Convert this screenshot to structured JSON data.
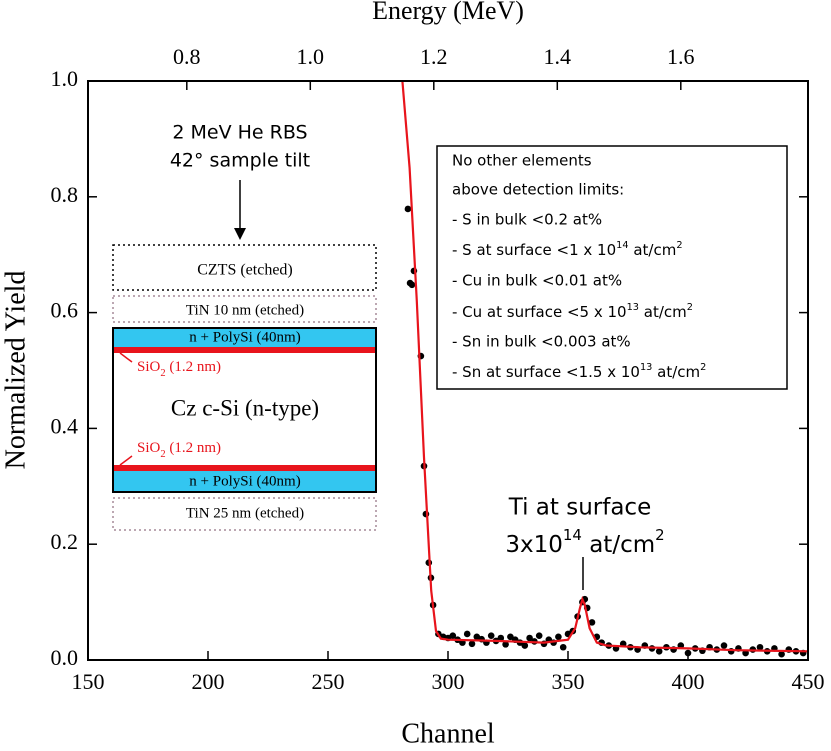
{
  "chart_data": {
    "type": "scatter",
    "x_label": "Channel",
    "y_label": "Normalized Yield",
    "x2_label": "Energy (MeV)",
    "xlim": [
      150,
      450
    ],
    "xticks": [
      150,
      200,
      250,
      300,
      350,
      400,
      450
    ],
    "ylim": [
      0,
      1
    ],
    "yticks": [
      {
        "value": 0,
        "label": "0.0"
      },
      0.2,
      0.4,
      0.6,
      0.8,
      {
        "value": 1,
        "label": "1.0"
      }
    ],
    "x2lim": [
      0.64,
      1.806
    ],
    "x2ticks": [
      0.8,
      {
        "value": 1,
        "label": "1.0"
      },
      1.2,
      1.4,
      1.6
    ],
    "series": [
      {
        "type": "scatter",
        "color": "#000000",
        "x": [
          283.3,
          284.2,
          285.8,
          285.0,
          288.7,
          290.0,
          290.8,
          292.0,
          292.9,
          293.8,
          296,
          298,
          300,
          302,
          304,
          306,
          308,
          310,
          312,
          314,
          316,
          318,
          320,
          322,
          324,
          326,
          328,
          330,
          332,
          334,
          336,
          338,
          340,
          342,
          344,
          346,
          348,
          350,
          352,
          354,
          356,
          357,
          358,
          360,
          362,
          364,
          367,
          370,
          373,
          376,
          379,
          382,
          385,
          388,
          391,
          394,
          397,
          400,
          403,
          406,
          409,
          412,
          415,
          418,
          421,
          424,
          427,
          430,
          433,
          436,
          439,
          442,
          445,
          448
        ],
        "values": [
          0.779,
          0.651,
          0.672,
          0.648,
          0.525,
          0.335,
          0.252,
          0.168,
          0.142,
          0.095,
          0.045,
          0.04,
          0.038,
          0.042,
          0.035,
          0.03,
          0.045,
          0.028,
          0.04,
          0.036,
          0.03,
          0.042,
          0.033,
          0.038,
          0.027,
          0.04,
          0.035,
          0.03,
          0.025,
          0.038,
          0.032,
          0.042,
          0.028,
          0.035,
          0.03,
          0.04,
          0.022,
          0.045,
          0.05,
          0.075,
          0.1,
          0.105,
          0.09,
          0.065,
          0.04,
          0.03,
          0.025,
          0.02,
          0.028,
          0.022,
          0.018,
          0.025,
          0.02,
          0.015,
          0.022,
          0.018,
          0.025,
          0.012,
          0.02,
          0.016,
          0.022,
          0.018,
          0.025,
          0.015,
          0.02,
          0.012,
          0.018,
          0.022,
          0.015,
          0.02,
          0.01,
          0.018,
          0.015,
          0.012
        ]
      },
      {
        "type": "line",
        "color": "#e8141c",
        "x": [
          281,
          284,
          287,
          290,
          293,
          295,
          297,
          300,
          320,
          340,
          350,
          353,
          355,
          356,
          357,
          359,
          362,
          366,
          380,
          400,
          420,
          450
        ],
        "values": [
          1.0,
          0.85,
          0.62,
          0.35,
          0.12,
          0.05,
          0.037,
          0.035,
          0.033,
          0.03,
          0.035,
          0.055,
          0.09,
          0.105,
          0.095,
          0.055,
          0.03,
          0.025,
          0.022,
          0.02,
          0.017,
          0.015
        ]
      }
    ],
    "annotations": {
      "rbs": "2 MeV He RBS",
      "tilt": "42° sample tilt",
      "ti": "Ti at surface",
      "ti_dose": [
        {
          "t": "3x10"
        },
        {
          "t": "14",
          "sup": true
        },
        {
          "t": " at/cm"
        },
        {
          "t": "2",
          "sup": true
        }
      ]
    },
    "limits_box": [
      "No other elements",
      "above detection limits:",
      "- S in bulk <0.2 at%",
      [
        {
          "t": "- S at surface <1 x 10"
        },
        {
          "t": "14",
          "sup": true
        },
        {
          "t": " at/cm"
        },
        {
          "t": "2",
          "sup": true
        }
      ],
      "- Cu in bulk <0.01 at%",
      [
        {
          "t": "- Cu at surface <5 x 10"
        },
        {
          "t": "13",
          "sup": true
        },
        {
          "t": " at/cm"
        },
        {
          "t": "2",
          "sup": true
        }
      ],
      "- Sn in bulk <0.003 at%",
      [
        {
          "t": "- Sn at surface <1.5 x 10"
        },
        {
          "t": "13",
          "sup": true
        },
        {
          "t": " at/cm"
        },
        {
          "t": "2",
          "sup": true
        }
      ]
    ],
    "inset": {
      "czts": "CZTS (etched)",
      "tin_top": "TiN 10 nm (etched)",
      "polysi_top": "n + PolySi (40nm)",
      "sio2_top": [
        {
          "t": "SiO"
        },
        {
          "t": "2",
          "sub": true
        },
        {
          "t": " (1.2 nm)"
        }
      ],
      "bulk": "Cz c-Si (n-type)",
      "sio2_bottom": [
        {
          "t": "SiO"
        },
        {
          "t": "2",
          "sub": true
        },
        {
          "t": " (1.2 nm)"
        }
      ],
      "polysi_bottom": "n + PolySi (40nm)",
      "tin_bottom": "TiN 25 nm (etched)"
    }
  }
}
